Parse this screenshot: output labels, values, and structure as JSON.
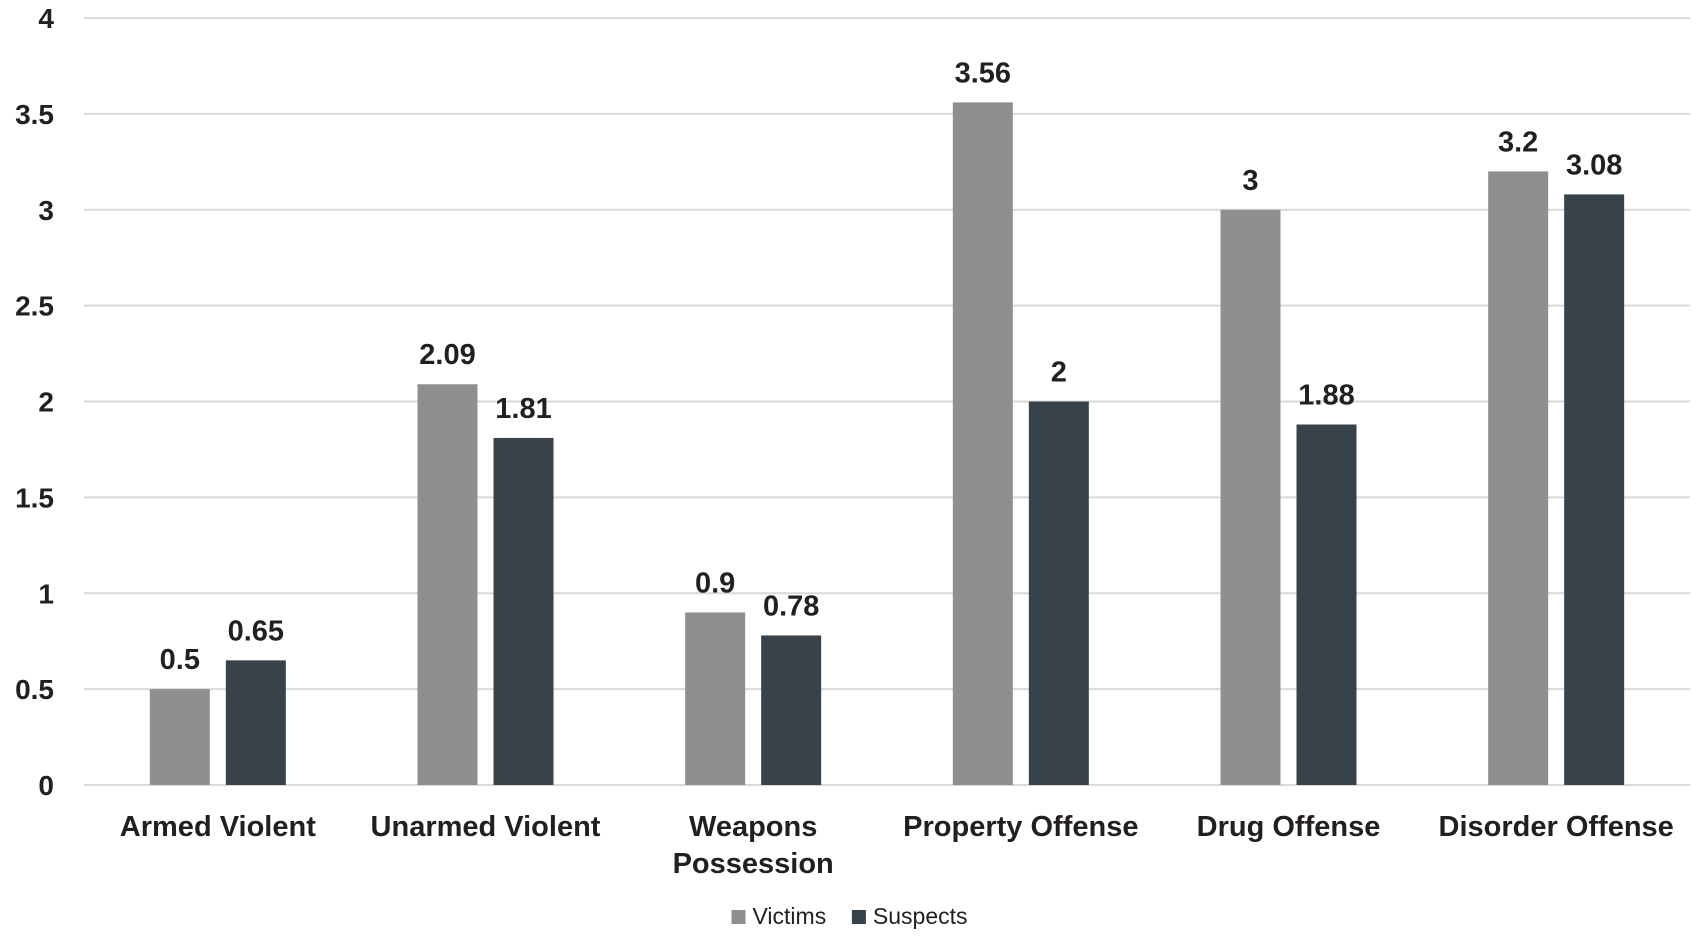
{
  "chart_data": {
    "type": "bar",
    "title": "",
    "xlabel": "",
    "ylabel": "",
    "categories": [
      [
        "Armed Violent"
      ],
      [
        "Unarmed Violent"
      ],
      [
        "Weapons",
        "Possession"
      ],
      [
        "Property Offense"
      ],
      [
        "Drug Offense"
      ],
      [
        "Disorder Offense"
      ]
    ],
    "series": [
      {
        "name": "Victims",
        "color": "#8f8f8f",
        "values": [
          0.5,
          2.09,
          0.9,
          3.56,
          3,
          3.2
        ]
      },
      {
        "name": "Suspects",
        "color": "#37424b",
        "values": [
          0.65,
          1.81,
          0.78,
          2,
          1.88,
          3.08
        ]
      }
    ],
    "data_labels": [
      [
        "0.5",
        "2.09",
        "0.9",
        "3.56",
        "3",
        "3.2"
      ],
      [
        "0.65",
        "1.81",
        "0.78",
        "2",
        "1.88",
        "3.08"
      ]
    ],
    "ylim": [
      0,
      4
    ],
    "yticks": [
      0,
      0.5,
      1,
      1.5,
      2,
      2.5,
      3,
      3.5,
      4
    ],
    "ytick_labels": [
      "0",
      "0.5",
      "1",
      "1.5",
      "2",
      "2.5",
      "3",
      "3.5",
      "4"
    ],
    "grid": true,
    "gridline_color": "#d9d9d9",
    "legend_position": "bottom-center"
  }
}
